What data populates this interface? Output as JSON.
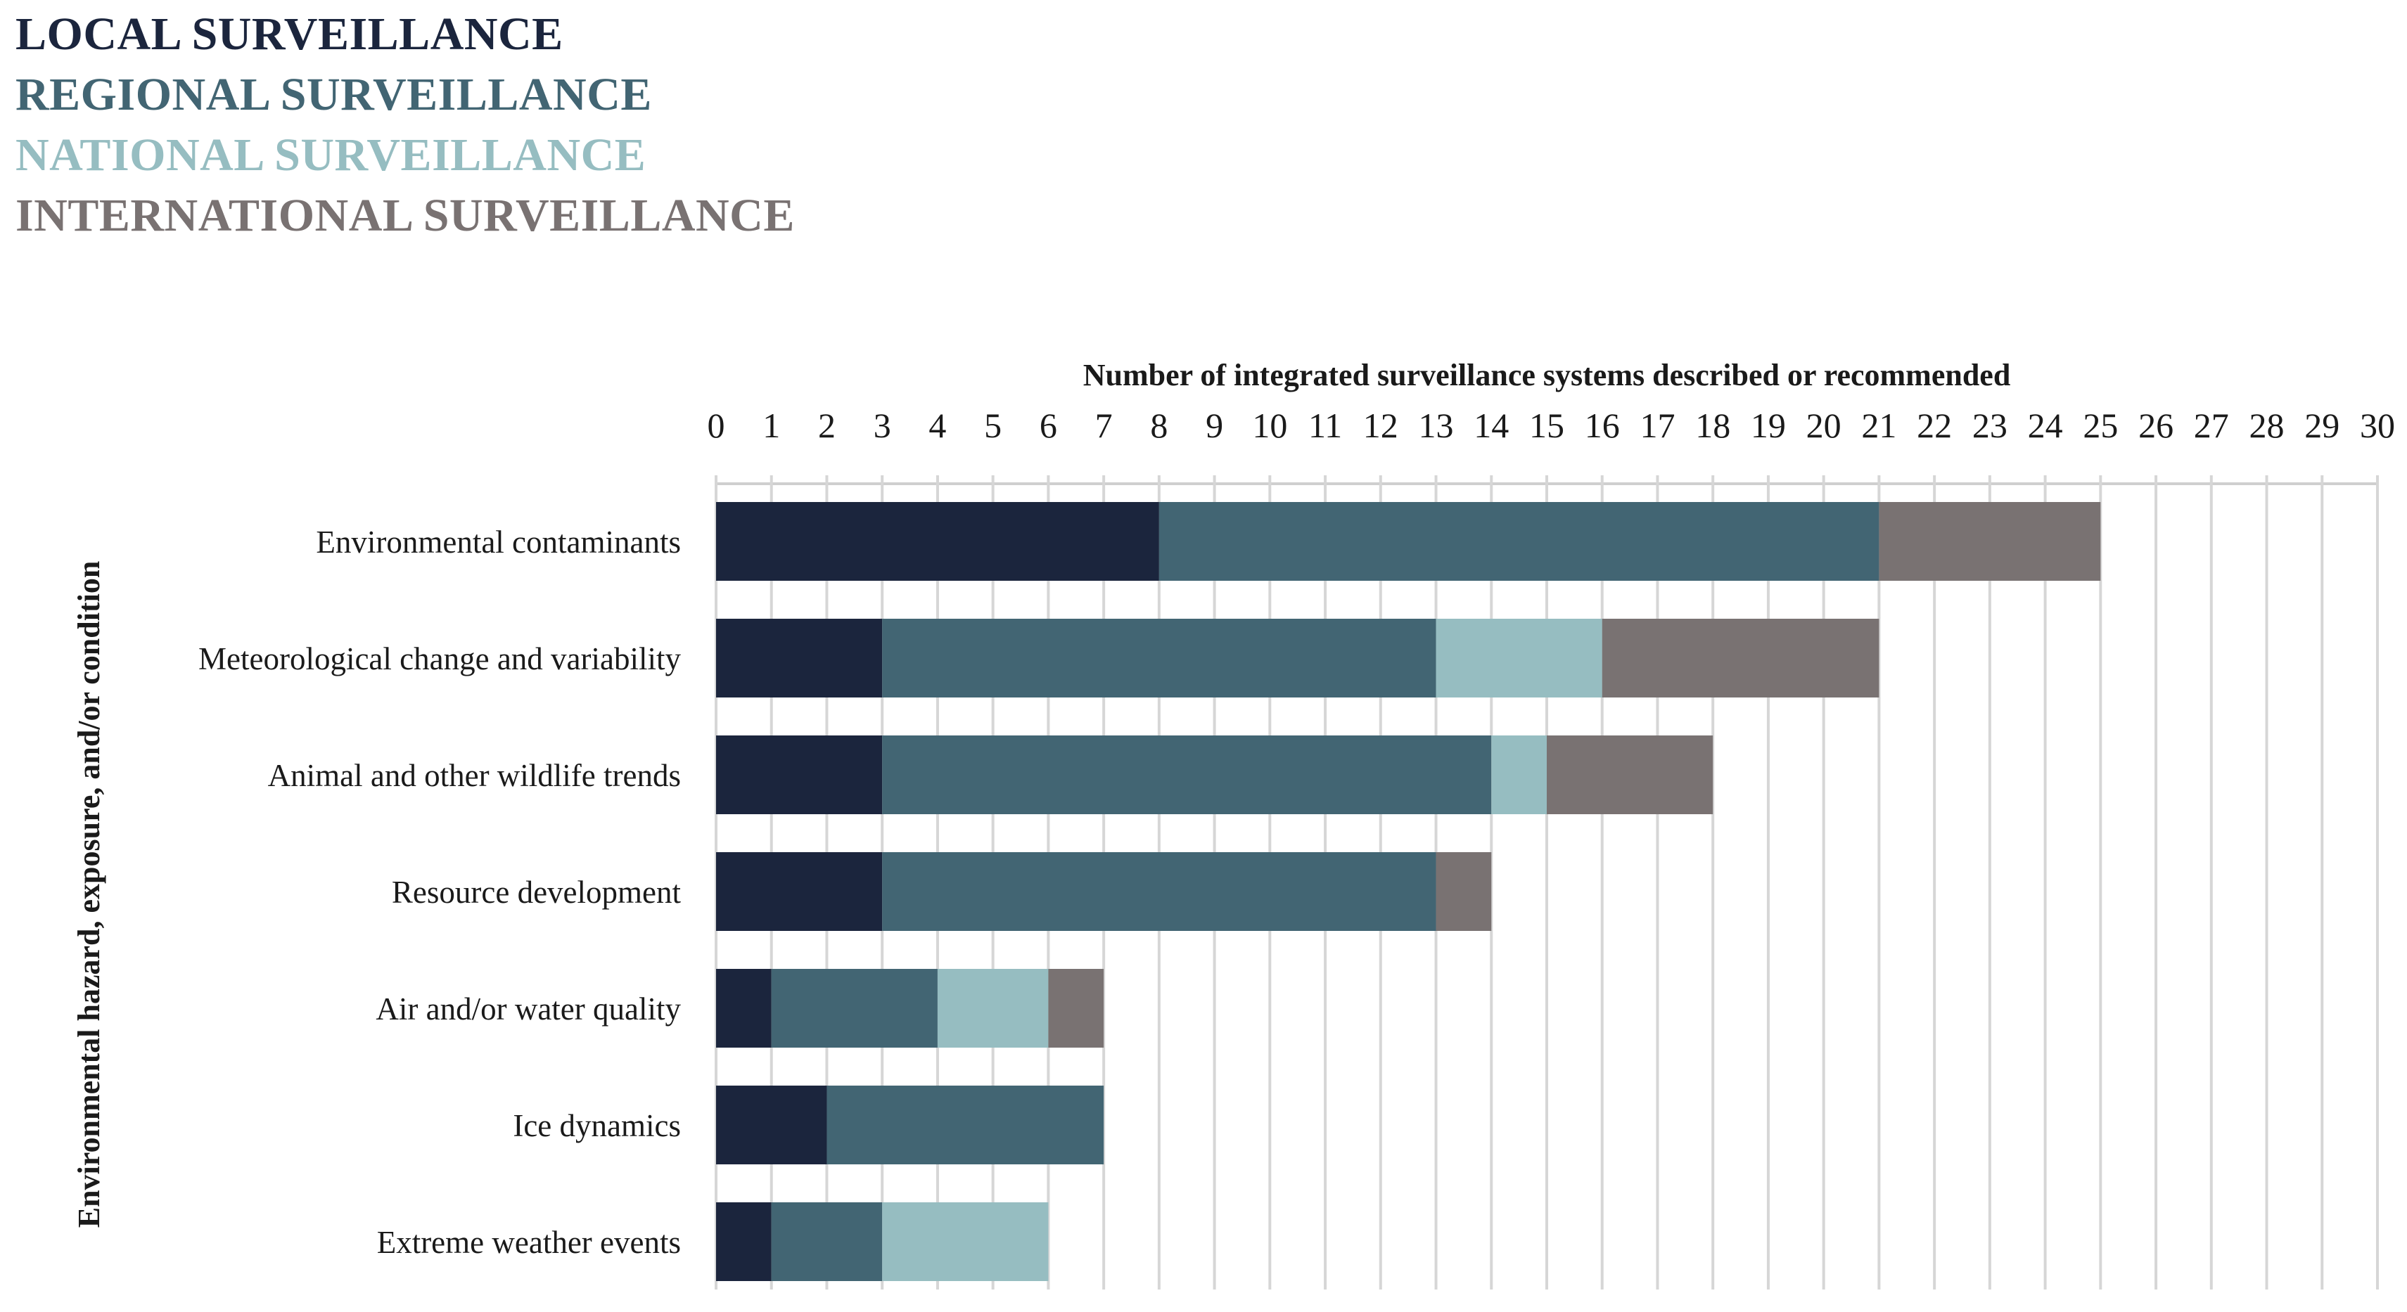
{
  "chart_data": {
    "type": "bar",
    "orientation": "horizontal",
    "stacked": true,
    "xlabel": "Number of integrated surveillance systems described or recommended",
    "ylabel": "Environmental hazard, exposure, and/or condition",
    "xlim": [
      0,
      30
    ],
    "x_ticks": [
      0,
      1,
      2,
      3,
      4,
      5,
      6,
      7,
      8,
      9,
      10,
      11,
      12,
      13,
      14,
      15,
      16,
      17,
      18,
      19,
      20,
      21,
      22,
      23,
      24,
      25,
      26,
      27,
      28,
      29,
      30
    ],
    "x_axis_position": "top",
    "grid": "vertical",
    "legend_position": "top-left",
    "categories": [
      "Environmental contaminants",
      "Meteorological change and variability",
      "Animal and other wildlife trends",
      "Resource development",
      "Air and/or water quality",
      "Ice dynamics",
      "Extreme weather events"
    ],
    "series": [
      {
        "name": "LOCAL SURVEILLANCE",
        "color": "#1b253d",
        "values": [
          8,
          3,
          3,
          3,
          1,
          2,
          1
        ]
      },
      {
        "name": "REGIONAL SURVEILLANCE",
        "color": "#426573",
        "values": [
          13,
          10,
          11,
          10,
          3,
          5,
          2
        ]
      },
      {
        "name": "NATIONAL SURVEILLANCE",
        "color": "#96bdc1",
        "values": [
          0,
          3,
          1,
          0,
          2,
          0,
          3
        ]
      },
      {
        "name": "INTERNATIONAL SURVEILLANCE",
        "color": "#797272",
        "values": [
          4,
          5,
          3,
          1,
          1,
          0,
          0
        ]
      }
    ]
  }
}
